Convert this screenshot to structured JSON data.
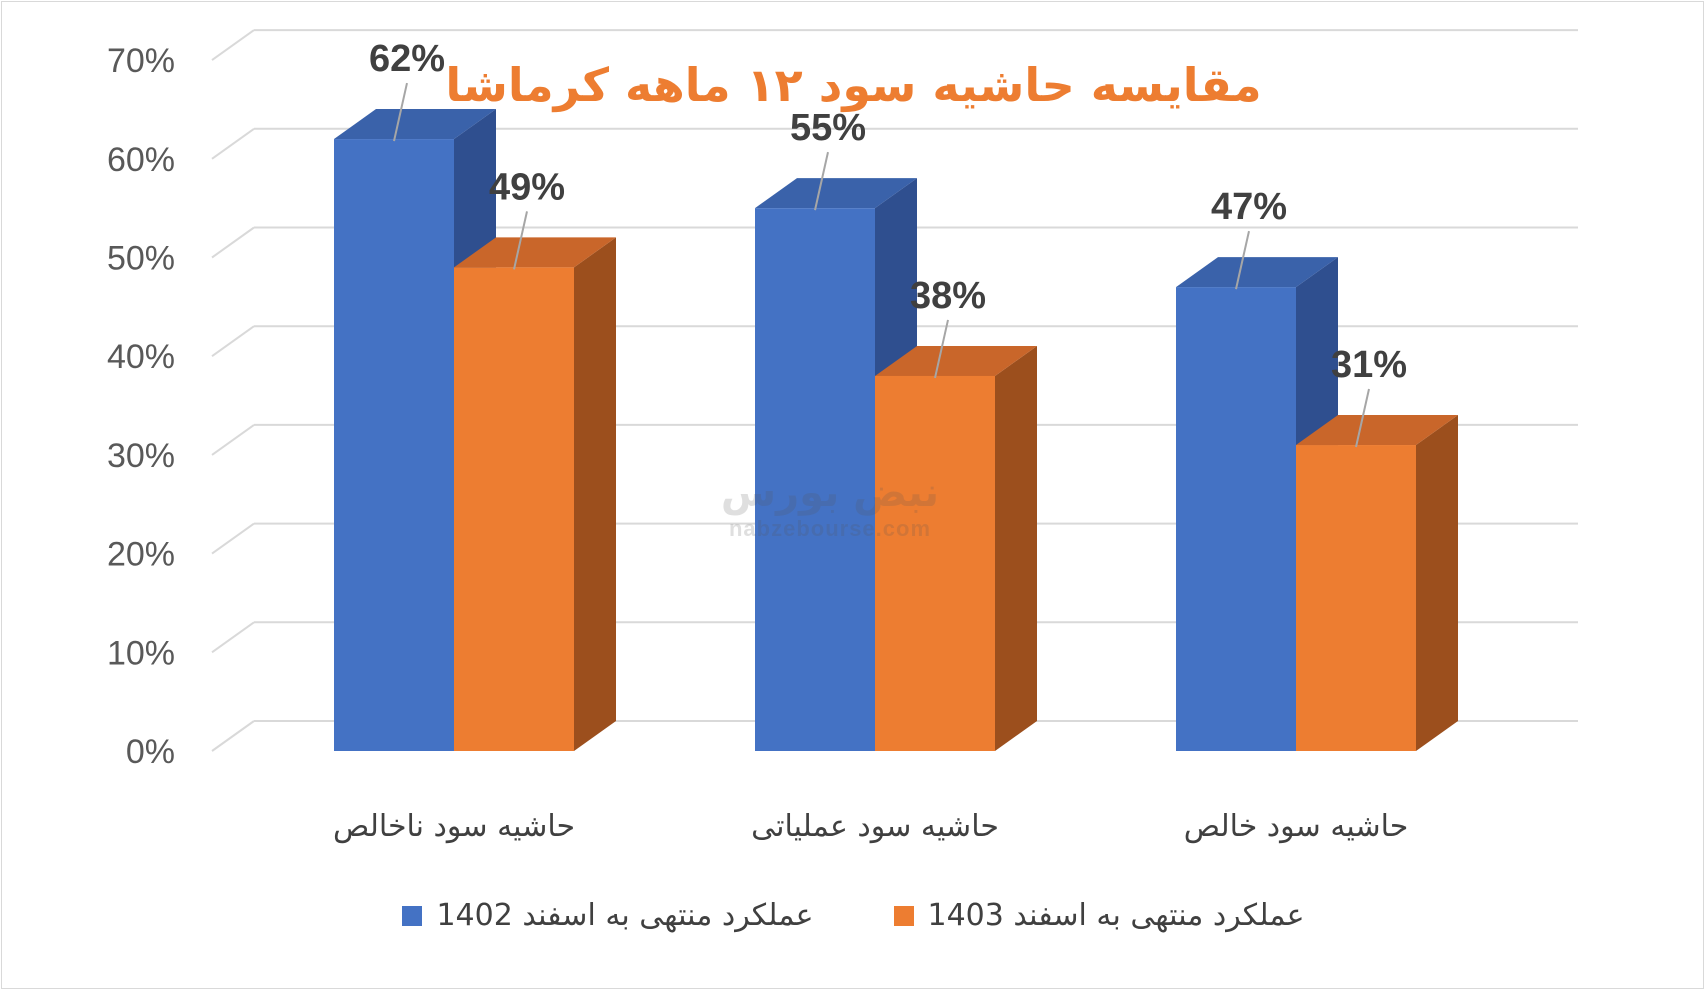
{
  "title": "مقایسه حاشیه سود ۱۲ ماهه کرماشا",
  "watermark": {
    "brand": "نبض بورس",
    "url": "nabzebourse.com"
  },
  "chart_data": {
    "type": "bar",
    "categories": [
      "حاشیه سود ناخالص",
      "حاشیه سود عملیاتی",
      "حاشیه سود خالص"
    ],
    "series": [
      {
        "name": "عملکرد منتهی به اسفند 1402",
        "values": [
          62,
          55,
          47
        ],
        "labels": [
          "62%",
          "55%",
          "47%"
        ],
        "color": "#4472c4",
        "side_color": "#2f4f8f",
        "top_color": "#3a62aa"
      },
      {
        "name": "عملکرد منتهی به اسفند 1403",
        "values": [
          49,
          38,
          31
        ],
        "labels": [
          "49%",
          "38%",
          "31%"
        ],
        "color": "#ed7d31",
        "side_color": "#9c4f1d",
        "top_color": "#c9662a"
      }
    ],
    "y_ticks": [
      "0%",
      "10%",
      "20%",
      "30%",
      "40%",
      "50%",
      "60%",
      "70%"
    ],
    "ylim": [
      0,
      70
    ],
    "grid": true,
    "legend_position": "bottom"
  }
}
